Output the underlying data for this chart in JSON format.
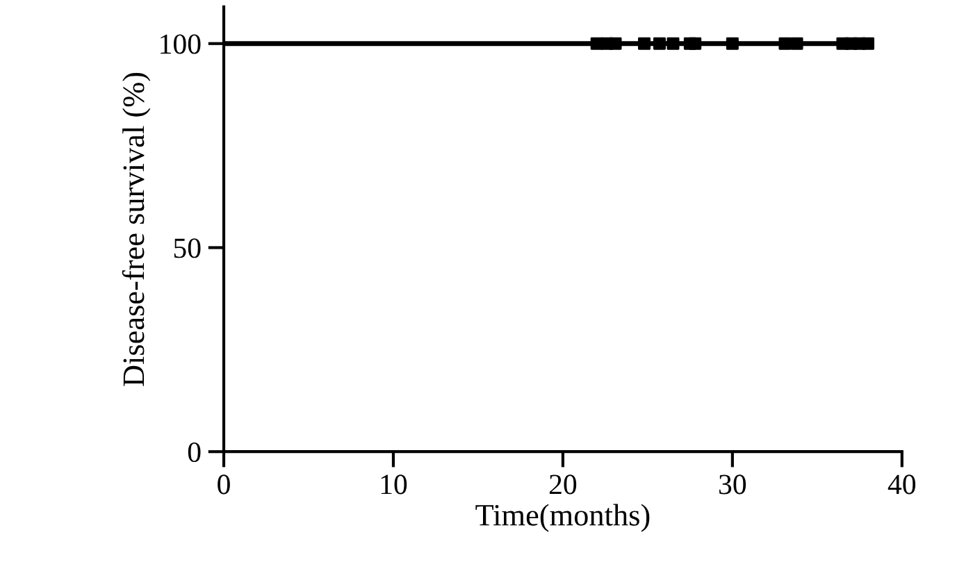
{
  "chart_data": {
    "type": "step",
    "xlabel": "Time(months)",
    "ylabel": "Disease-free survival (%)",
    "xlim": [
      0,
      40
    ],
    "xticks": [
      0,
      10,
      20,
      30,
      40
    ],
    "ylim": [
      0,
      109
    ],
    "yticks": [
      0,
      50,
      100
    ],
    "grid": false,
    "series": [
      {
        "color": "#000000",
        "marker": "none",
        "x": [
          0,
          38.2
        ],
        "values": [
          100,
          100
        ]
      },
      {
        "type": "scatter",
        "color": "#000000",
        "marker": "square",
        "x": [
          22.0,
          22.6,
          23.1,
          24.8,
          25.7,
          26.5,
          27.5,
          27.8,
          30.0,
          33.1,
          33.8,
          36.5,
          37.0,
          37.5,
          38.0
        ],
        "values": [
          100,
          100,
          100,
          100,
          100,
          100,
          100,
          100,
          100,
          100,
          100,
          100,
          100,
          100,
          100
        ]
      }
    ]
  }
}
